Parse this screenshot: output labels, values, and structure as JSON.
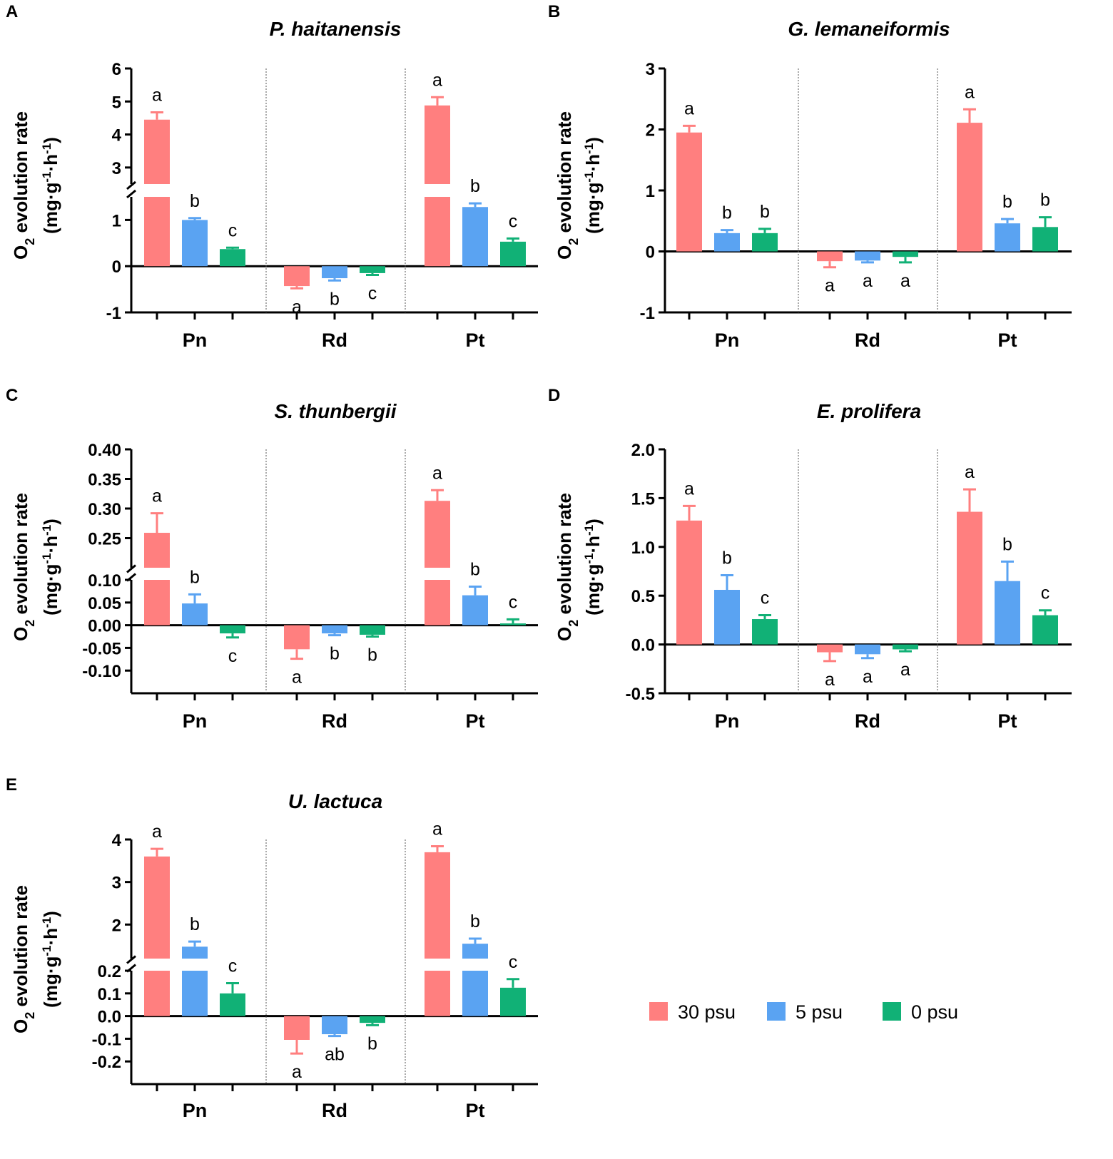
{
  "legend": {
    "items": [
      {
        "label": "30 psu",
        "color": "#FF7F7F"
      },
      {
        "label": "5 psu",
        "color": "#5AA3F2"
      },
      {
        "label": "0 psu",
        "color": "#11B176"
      }
    ]
  },
  "chart_data": [
    {
      "panel": "A",
      "title": "P. haitanensis",
      "type": "bar",
      "ylabel": "O2 evolution rate",
      "yunit": "(mg·g-1·h-1)",
      "categories": [
        "Pn",
        "Rd",
        "Pt"
      ],
      "y_break": {
        "lower_max": 1.5,
        "upper_min": 2.5
      },
      "lower_ticks": [
        -1,
        0,
        1
      ],
      "upper_ticks": [
        3,
        4,
        5,
        6
      ],
      "lower_tick_labels": [
        "-1",
        "0",
        "1"
      ],
      "upper_tick_labels": [
        "3",
        "4",
        "5",
        "6"
      ],
      "series": [
        {
          "name": "30 psu",
          "values": [
            4.45,
            -0.43,
            4.88
          ],
          "errors": [
            0.22,
            0.05,
            0.25
          ],
          "letters": [
            "a",
            "a",
            "a"
          ]
        },
        {
          "name": "5 psu",
          "values": [
            1.0,
            -0.26,
            1.28
          ],
          "errors": [
            0.04,
            0.05,
            0.08
          ],
          "letters": [
            "b",
            "b",
            "b"
          ]
        },
        {
          "name": "0 psu",
          "values": [
            0.37,
            -0.15,
            0.53
          ],
          "errors": [
            0.03,
            0.04,
            0.07
          ],
          "letters": [
            "c",
            "c",
            "c"
          ]
        }
      ]
    },
    {
      "panel": "B",
      "title": "G. lemaneiformis",
      "type": "bar",
      "ylabel": "O2 evolution rate",
      "yunit": "(mg·g-1·h-1)",
      "categories": [
        "Pn",
        "Rd",
        "Pt"
      ],
      "ylim": [
        -1,
        3
      ],
      "ticks": [
        -1,
        0,
        1,
        2,
        3
      ],
      "tick_labels": [
        "-1",
        "0",
        "1",
        "2",
        "3"
      ],
      "series": [
        {
          "name": "30 psu",
          "values": [
            1.95,
            -0.16,
            2.11
          ],
          "errors": [
            0.11,
            0.1,
            0.22
          ],
          "letters": [
            "a",
            "a",
            "a"
          ]
        },
        {
          "name": "5 psu",
          "values": [
            0.3,
            -0.15,
            0.46
          ],
          "errors": [
            0.05,
            0.03,
            0.07
          ],
          "letters": [
            "b",
            "a",
            "b"
          ]
        },
        {
          "name": "0 psu",
          "values": [
            0.3,
            -0.09,
            0.4
          ],
          "errors": [
            0.07,
            0.09,
            0.16
          ],
          "letters": [
            "b",
            "a",
            "b"
          ]
        }
      ]
    },
    {
      "panel": "C",
      "title": "S. thunbergii",
      "type": "bar",
      "ylabel": "O2 evolution rate",
      "yunit": "(mg·g-1·h-1)",
      "categories": [
        "Pn",
        "Rd",
        "Pt"
      ],
      "y_break": {
        "lower_max": 0.1,
        "upper_min": 0.2
      },
      "lower_ticks": [
        -0.1,
        -0.05,
        0.0,
        0.05,
        0.1
      ],
      "upper_ticks": [
        0.25,
        0.3,
        0.35,
        0.4
      ],
      "lower_tick_labels": [
        "-0.10",
        "-0.05",
        "0.00",
        "0.05",
        "0.10"
      ],
      "upper_tick_labels": [
        "0.25",
        "0.30",
        "0.35",
        "0.40"
      ],
      "series": [
        {
          "name": "30 psu",
          "values": [
            0.259,
            -0.053,
            0.313
          ],
          "errors": [
            0.033,
            0.021,
            0.018
          ],
          "letters": [
            "a",
            "a",
            "a"
          ]
        },
        {
          "name": "5 psu",
          "values": [
            0.048,
            -0.018,
            0.066
          ],
          "errors": [
            0.02,
            0.004,
            0.019
          ],
          "letters": [
            "b",
            "b",
            "b"
          ]
        },
        {
          "name": "0 psu",
          "values": [
            -0.018,
            -0.021,
            0.004
          ],
          "errors": [
            0.009,
            0.004,
            0.009
          ],
          "letters": [
            "c",
            "b",
            "c"
          ]
        }
      ]
    },
    {
      "panel": "D",
      "title": "E. prolifera",
      "type": "bar",
      "ylabel": "O2 evolution rate",
      "yunit": "(mg·g-1·h-1)",
      "categories": [
        "Pn",
        "Rd",
        "Pt"
      ],
      "ylim": [
        -0.5,
        2.0
      ],
      "ticks": [
        -0.5,
        0.0,
        0.5,
        1.0,
        1.5,
        2.0
      ],
      "tick_labels": [
        "-0.5",
        "0.0",
        "0.5",
        "1.0",
        "1.5",
        "2.0"
      ],
      "series": [
        {
          "name": "30 psu",
          "values": [
            1.27,
            -0.08,
            1.36
          ],
          "errors": [
            0.15,
            0.09,
            0.23
          ],
          "letters": [
            "a",
            "a",
            "a"
          ]
        },
        {
          "name": "5 psu",
          "values": [
            0.56,
            -0.1,
            0.65
          ],
          "errors": [
            0.15,
            0.04,
            0.2
          ],
          "letters": [
            "b",
            "a",
            "b"
          ]
        },
        {
          "name": "0 psu",
          "values": [
            0.26,
            -0.05,
            0.3
          ],
          "errors": [
            0.04,
            0.02,
            0.05
          ],
          "letters": [
            "c",
            "a",
            "c"
          ]
        }
      ]
    },
    {
      "panel": "E",
      "title": "U. lactuca",
      "type": "bar",
      "ylabel": "O2 evolution rate",
      "yunit": "(mg·g-1·h-1)",
      "categories": [
        "Pn",
        "Rd",
        "Pt"
      ],
      "y_break": {
        "lower_max": 0.2,
        "upper_min": 1.2
      },
      "lower_ticks": [
        -0.2,
        -0.1,
        0.0,
        0.1,
        0.2
      ],
      "upper_ticks": [
        2,
        3,
        4
      ],
      "lower_tick_labels": [
        "-0.2",
        "-0.1",
        "0.0",
        "0.1",
        "0.2"
      ],
      "upper_tick_labels": [
        "2",
        "3",
        "4"
      ],
      "series": [
        {
          "name": "30 psu",
          "values": [
            3.6,
            -0.105,
            3.7
          ],
          "errors": [
            0.18,
            0.06,
            0.14
          ],
          "letters": [
            "a",
            "a",
            "a"
          ]
        },
        {
          "name": "5 psu",
          "values": [
            1.48,
            -0.08,
            1.55
          ],
          "errors": [
            0.12,
            0.008,
            0.12
          ],
          "letters": [
            "b",
            "ab",
            "b"
          ]
        },
        {
          "name": "0 psu",
          "values": [
            0.1,
            -0.03,
            0.125
          ],
          "errors": [
            0.045,
            0.01,
            0.038
          ],
          "letters": [
            "c",
            "b",
            "c"
          ]
        }
      ]
    }
  ]
}
